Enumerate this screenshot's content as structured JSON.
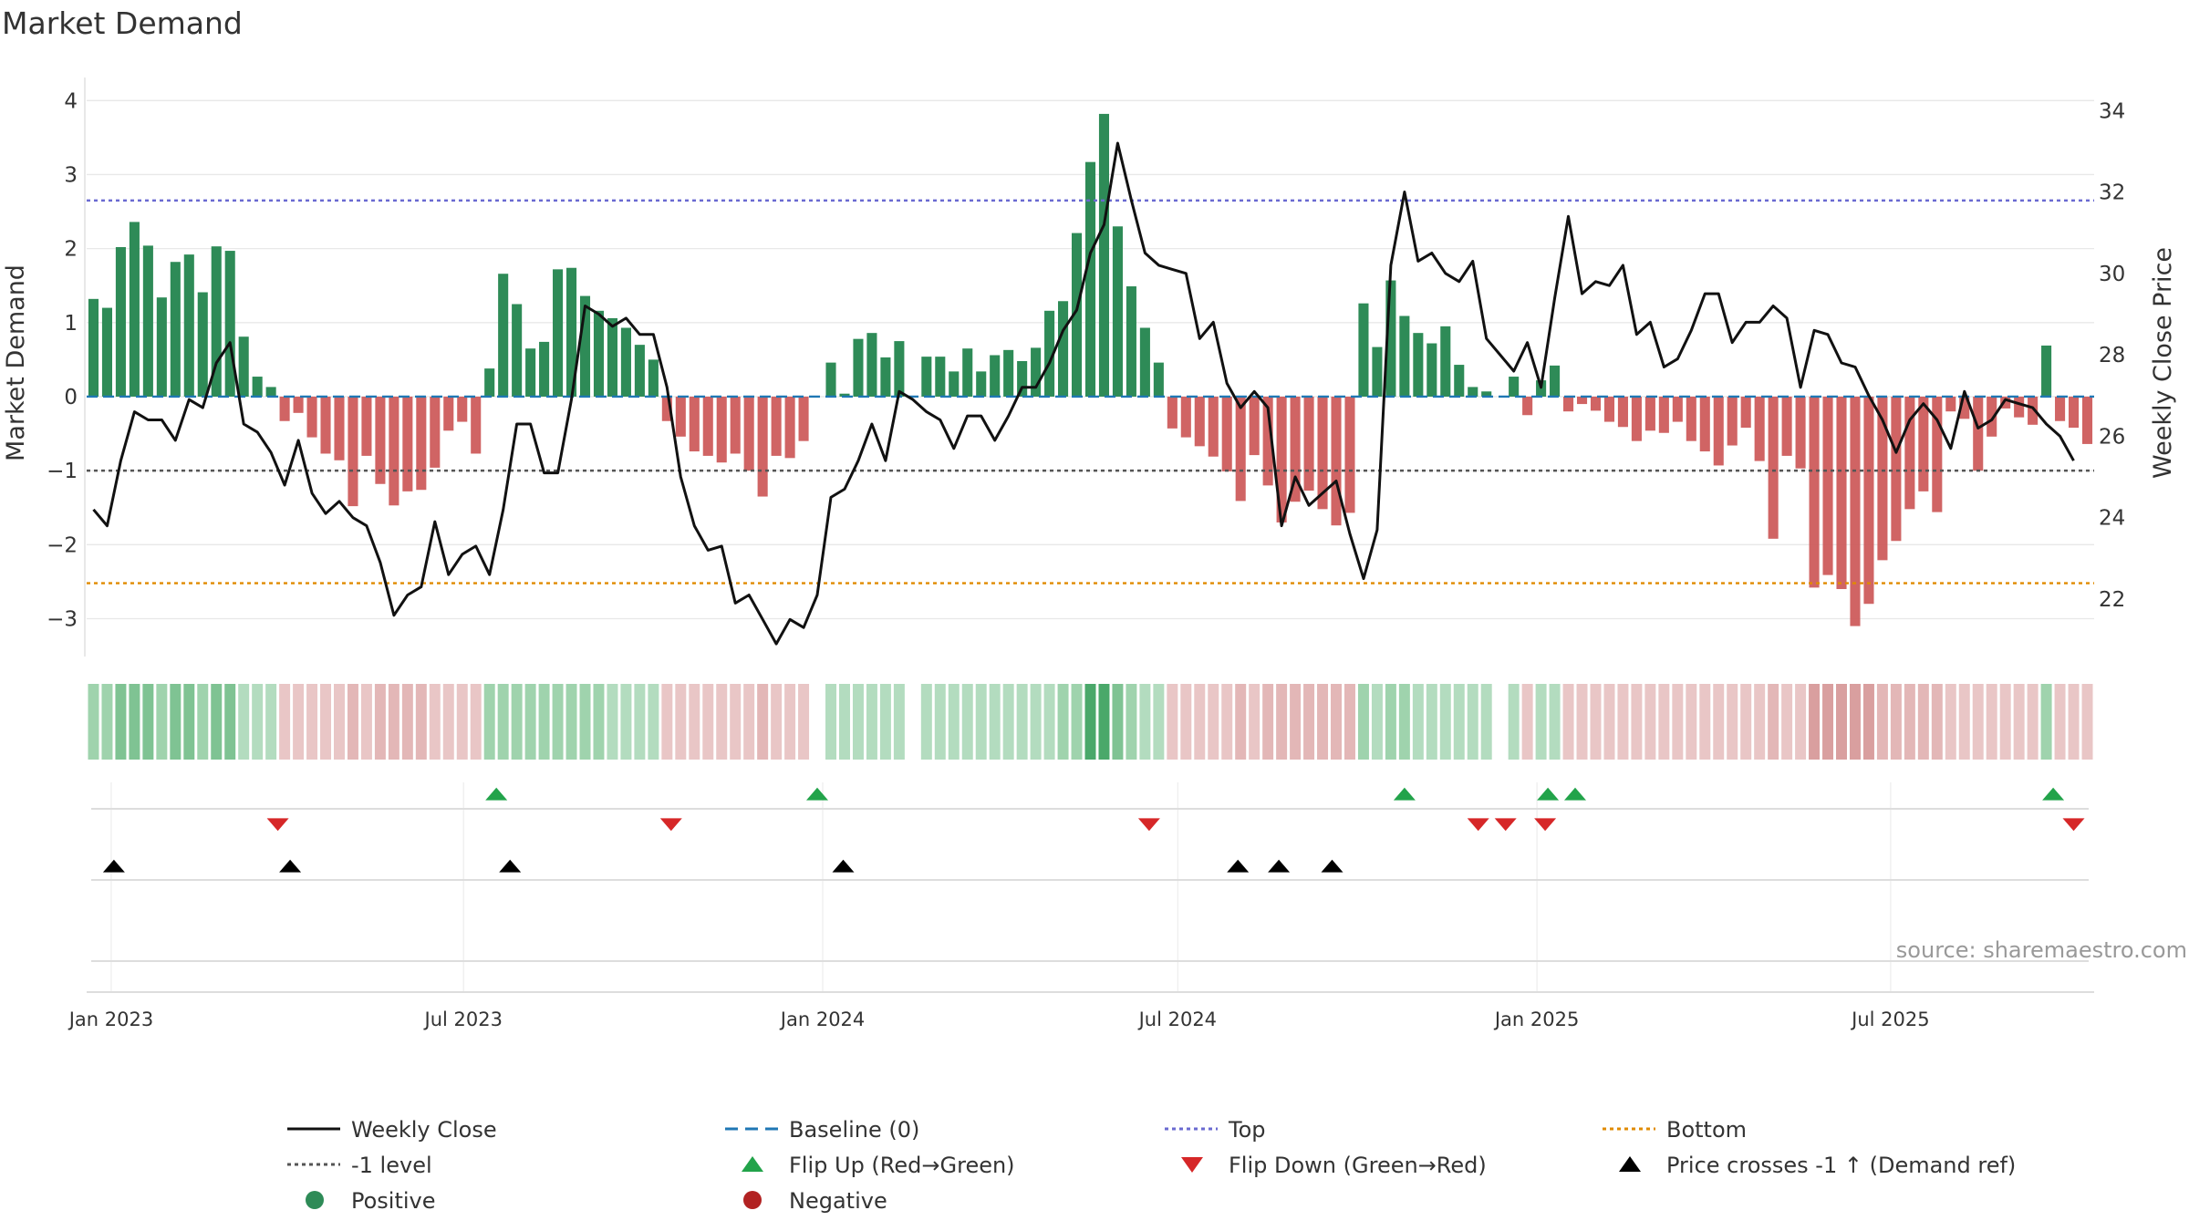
{
  "chart_data": {
    "type": "bar+line",
    "title": "Market Demand",
    "ylabel_left": "Market Demand",
    "ylabel_right": "Weekly Close Price",
    "ylim_left": [
      -3.45,
      4.25
    ],
    "ylim_right": [
      20.7,
      34.7
    ],
    "yticks_left": [
      4,
      3,
      2,
      1,
      0,
      -1,
      -2,
      -3
    ],
    "ytick_labels_left": [
      "4",
      "3",
      "2",
      "1",
      "0",
      "−1",
      "−2",
      "−3"
    ],
    "yticks_right": [
      34,
      32,
      30,
      28,
      26,
      24,
      22
    ],
    "ytick_labels_right": [
      "34",
      "32",
      "30",
      "28",
      "26",
      "24",
      "22"
    ],
    "x_start": "2022-12-23",
    "x_week_step_days": 7,
    "xticks": [
      {
        "label": "Jan 2023",
        "week": 1.3
      },
      {
        "label": "Jul 2023",
        "week": 27.1
      },
      {
        "label": "Jan 2024",
        "week": 53.4
      },
      {
        "label": "Jul 2024",
        "week": 79.4
      },
      {
        "label": "Jan 2025",
        "week": 105.7
      },
      {
        "label": "Jul 2025",
        "week": 131.6
      }
    ],
    "demand": [
      1.32,
      1.2,
      2.02,
      2.36,
      2.04,
      1.34,
      1.82,
      1.92,
      1.41,
      2.03,
      1.97,
      0.81,
      0.27,
      0.13,
      -0.33,
      -0.22,
      -0.55,
      -0.77,
      -0.86,
      -1.48,
      -0.8,
      -1.18,
      -1.47,
      -1.28,
      -1.26,
      -0.96,
      -0.46,
      -0.34,
      -0.77,
      0.38,
      1.66,
      1.25,
      0.65,
      0.74,
      1.72,
      1.74,
      1.36,
      1.16,
      1.06,
      0.93,
      0.7,
      0.5,
      -0.33,
      -0.54,
      -0.74,
      -0.8,
      -0.89,
      -0.77,
      -1.0,
      -1.35,
      -0.8,
      -0.83,
      -0.6,
      0.0,
      0.46,
      0.04,
      0.78,
      0.86,
      0.53,
      0.75,
      0.0,
      0.54,
      0.54,
      0.34,
      0.65,
      0.34,
      0.56,
      0.63,
      0.48,
      0.66,
      1.16,
      1.29,
      2.21,
      3.17,
      3.82,
      2.3,
      1.49,
      0.93,
      0.46,
      -0.43,
      -0.55,
      -0.67,
      -0.81,
      -1.01,
      -1.41,
      -0.79,
      -1.2,
      -1.7,
      -1.42,
      -1.27,
      -1.52,
      -1.74,
      -1.57,
      1.26,
      0.67,
      1.57,
      1.09,
      0.86,
      0.72,
      0.95,
      0.43,
      0.13,
      0.07,
      0.0,
      0.27,
      -0.25,
      0.22,
      0.42,
      -0.2,
      -0.1,
      -0.19,
      -0.34,
      -0.41,
      -0.6,
      -0.46,
      -0.49,
      -0.34,
      -0.6,
      -0.74,
      -0.93,
      -0.66,
      -0.42,
      -0.87,
      -1.92,
      -0.8,
      -0.97,
      -2.58,
      -2.41,
      -2.6,
      -3.1,
      -2.8,
      -2.21,
      -1.95,
      -1.52,
      -1.28,
      -1.56,
      -0.2,
      -0.3,
      -1.0,
      -0.54,
      -0.16,
      -0.28,
      -0.38,
      0.69,
      -0.33,
      -0.42,
      -0.64
    ],
    "close": [
      24.2,
      23.8,
      25.4,
      26.6,
      26.4,
      26.4,
      25.9,
      26.9,
      26.7,
      27.8,
      28.3,
      26.3,
      26.1,
      25.6,
      24.8,
      25.9,
      24.6,
      24.1,
      24.4,
      24.0,
      23.8,
      22.9,
      21.6,
      22.1,
      22.3,
      23.9,
      22.6,
      23.1,
      23.3,
      22.6,
      24.2,
      26.3,
      26.3,
      25.1,
      25.1,
      26.9,
      29.2,
      29.0,
      28.7,
      28.9,
      28.5,
      28.5,
      27.2,
      25.0,
      23.8,
      23.2,
      23.3,
      21.9,
      22.1,
      21.5,
      20.9,
      21.5,
      21.3,
      22.1,
      24.5,
      24.7,
      25.4,
      26.3,
      25.4,
      27.1,
      26.9,
      26.6,
      26.4,
      25.7,
      26.5,
      26.5,
      25.9,
      26.5,
      27.2,
      27.2,
      27.8,
      28.6,
      29.1,
      30.5,
      31.2,
      33.2,
      31.8,
      30.5,
      30.2,
      30.1,
      30.0,
      28.4,
      28.8,
      27.3,
      26.7,
      27.1,
      26.7,
      23.8,
      25.0,
      24.3,
      24.6,
      24.9,
      23.6,
      22.5,
      23.7,
      30.2,
      32.0,
      30.3,
      30.5,
      30.0,
      29.8,
      30.3,
      28.4,
      28.0,
      27.6,
      28.3,
      27.2,
      29.4,
      31.4,
      29.5,
      29.8,
      29.7,
      30.2,
      28.5,
      28.8,
      27.7,
      27.9,
      28.6,
      29.5,
      29.5,
      28.3,
      28.8,
      28.8,
      29.2,
      28.9,
      27.2,
      28.6,
      28.5,
      27.8,
      27.7,
      27.0,
      26.4,
      25.6,
      26.4,
      26.8,
      26.4,
      25.7,
      27.1,
      26.2,
      26.4,
      26.9,
      26.8,
      26.7,
      26.3,
      26.0,
      25.4
    ],
    "tile_intensity": [
      2,
      2,
      3,
      3,
      3,
      2,
      3,
      3,
      2,
      3,
      3,
      1,
      1,
      1,
      1,
      1,
      1,
      1,
      1,
      2,
      1,
      2,
      2,
      2,
      2,
      1,
      1,
      1,
      1,
      2,
      2,
      2,
      2,
      2,
      2,
      2,
      2,
      2,
      1,
      1,
      1,
      1,
      1,
      1,
      1,
      1,
      1,
      1,
      1,
      2,
      1,
      1,
      1,
      0,
      1,
      1,
      1,
      1,
      1,
      1,
      0,
      1,
      1,
      1,
      1,
      1,
      1,
      1,
      1,
      1,
      1,
      2,
      2,
      4,
      4,
      3,
      2,
      1,
      1,
      1,
      1,
      1,
      1,
      1,
      2,
      1,
      2,
      2,
      2,
      2,
      2,
      2,
      2,
      2,
      1,
      2,
      2,
      1,
      1,
      1,
      1,
      1,
      1,
      0,
      1,
      1,
      1,
      1,
      1,
      1,
      1,
      1,
      1,
      1,
      1,
      1,
      1,
      1,
      1,
      1,
      1,
      1,
      1,
      2,
      1,
      1,
      3,
      3,
      3,
      3,
      3,
      2,
      2,
      2,
      2,
      2,
      1,
      1,
      1,
      1,
      1,
      1,
      1,
      2,
      1,
      1,
      1
    ],
    "reference_lines": [
      {
        "name": "Baseline (0)",
        "value": 0,
        "color": "#1f77b4",
        "style": "dashed"
      },
      {
        "name": "Top",
        "value": 2.65,
        "color": "#6a6ad1",
        "style": "dotted"
      },
      {
        "name": "Bottom",
        "value": -2.52,
        "color": "#e08b00",
        "style": "dotted"
      },
      {
        "name": "-1 level",
        "value": -1,
        "color": "#555555",
        "style": "dotted"
      }
    ],
    "flip_up_weeks": [
      29.5,
      53,
      96,
      106.5,
      108.5,
      143.5
    ],
    "flip_down_weeks": [
      13.5,
      42.3,
      77.3,
      101.4,
      103.4,
      106.3,
      145
    ],
    "price_cross_weeks": [
      1.5,
      14.4,
      30.5,
      54.9,
      83.8,
      86.8,
      90.7
    ],
    "colors": {
      "positive": "#2e8b57",
      "negative": "#cd5c5c",
      "line": "#111111",
      "flip_up": "#22a34a",
      "flip_down": "#d62728",
      "cross": "#000000",
      "grid": "#e8e8e8"
    },
    "legend": [
      {
        "label": "Weekly Close",
        "kind": "line",
        "color": "#111111"
      },
      {
        "label": "Baseline (0)",
        "kind": "dash",
        "color": "#1f77b4"
      },
      {
        "label": "Top",
        "kind": "dot",
        "color": "#6a6ad1"
      },
      {
        "label": "Bottom",
        "kind": "dot",
        "color": "#e08b00"
      },
      {
        "label": "-1 level",
        "kind": "dot",
        "color": "#555555"
      },
      {
        "label": "Flip Up (Red→Green)",
        "kind": "tri-up",
        "color": "#22a34a"
      },
      {
        "label": "Flip Down (Green→Red)",
        "kind": "tri-down",
        "color": "#d62728"
      },
      {
        "label": "Price crosses -1 ↑ (Demand ref)",
        "kind": "tri-up",
        "color": "#000000"
      },
      {
        "label": "Positive",
        "kind": "circle",
        "color": "#2e8b57"
      },
      {
        "label": "Negative",
        "kind": "circle",
        "color": "#b22222"
      }
    ],
    "source": "source: sharemaestro.com"
  }
}
